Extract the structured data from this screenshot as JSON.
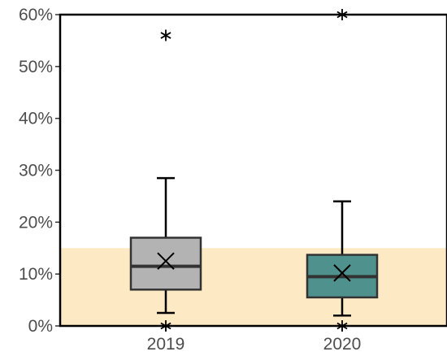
{
  "chart_data": {
    "type": "box",
    "title": "",
    "xlabel": "",
    "ylabel": "",
    "ylim": [
      0,
      60
    ],
    "y_ticks": [
      "0%",
      "10%",
      "20%",
      "30%",
      "40%",
      "50%",
      "60%"
    ],
    "y_tick_values": [
      0,
      10,
      20,
      30,
      40,
      50,
      60
    ],
    "categories": [
      "2019",
      "2020"
    ],
    "reference_band": {
      "from": 0,
      "to": 15,
      "color": "#fde9c3"
    },
    "boxes": [
      {
        "category": "2019",
        "whisker_low": 2.5,
        "q1": 7.0,
        "median": 11.5,
        "q3": 17.0,
        "whisker_high": 28.5,
        "mean": 12.5,
        "outliers": [
          0,
          56
        ],
        "color": "#b3b3b3"
      },
      {
        "category": "2020",
        "whisker_low": 2.0,
        "q1": 5.5,
        "median": 9.5,
        "q3": 13.7,
        "whisker_high": 24.0,
        "mean": 10.2,
        "outliers": [
          0,
          60
        ],
        "color": "#4e918d"
      }
    ],
    "grid": false,
    "legend": "none"
  }
}
